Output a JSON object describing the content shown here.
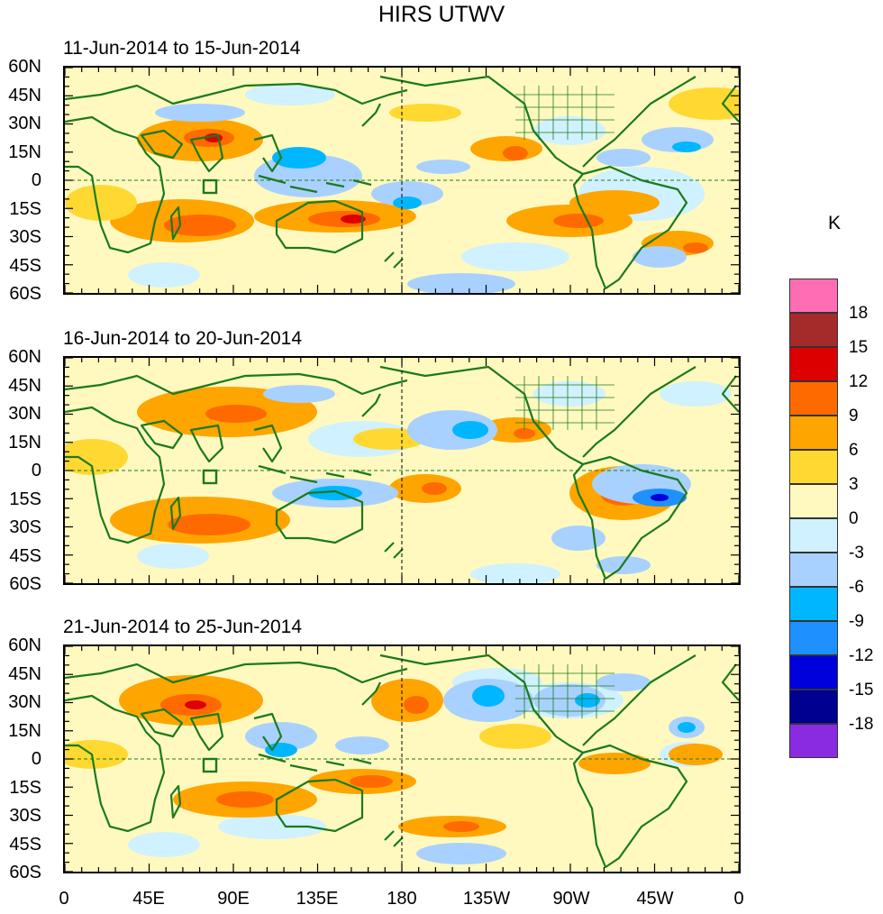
{
  "title": "HIRS UTWV",
  "panels": [
    {
      "title": "11-Jun-2014 to 15-Jun-2014"
    },
    {
      "title": "16-Jun-2014 to 20-Jun-2014"
    },
    {
      "title": "21-Jun-2014 to 25-Jun-2014"
    }
  ],
  "lat_labels": [
    "60N",
    "45N",
    "30N",
    "15N",
    "0",
    "15S",
    "30S",
    "45S",
    "60S"
  ],
  "lon_labels": [
    "0",
    "45E",
    "90E",
    "135E",
    "180",
    "135W",
    "90W",
    "45W",
    "0"
  ],
  "colorbar": {
    "unit": "K",
    "levels": [
      "18",
      "15",
      "12",
      "9",
      "6",
      "3",
      "0",
      "-3",
      "-6",
      "-9",
      "-12",
      "-15",
      "-18"
    ],
    "colors": [
      "#ff6eb4",
      "#a52a2a",
      "#dd0000",
      "#ff6a00",
      "#ffa500",
      "#ffd931",
      "#fff9bf",
      "#d0f1ff",
      "#a9d1ff",
      "#00b6ff",
      "#1e90ff",
      "#0000dd",
      "#000090",
      "#8a2be2"
    ]
  },
  "colors": {
    "coastline": "#1b7a1b",
    "frame": "#000000"
  }
}
